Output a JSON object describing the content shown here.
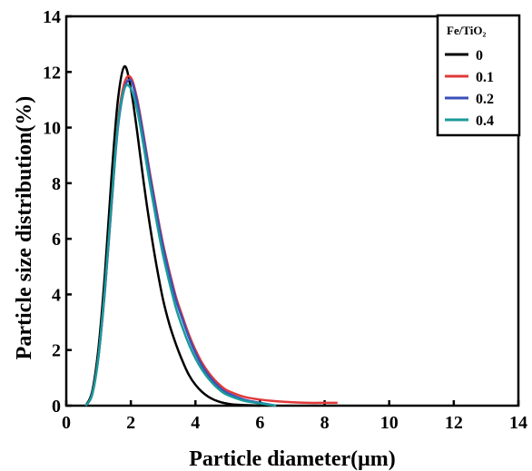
{
  "chart_data": {
    "type": "line",
    "title": "",
    "xlabel": "Particle diameter(μm)",
    "ylabel": "Particle size distribution(%)",
    "xlim": [
      0,
      14
    ],
    "ylim": [
      0,
      14
    ],
    "xticks": [
      "0",
      "2",
      "4",
      "6",
      "8",
      "10",
      "12",
      "14"
    ],
    "yticks": [
      "0",
      "2",
      "4",
      "6",
      "8",
      "10",
      "12",
      "14"
    ],
    "grid": false,
    "legend": {
      "title": "Fe/TiO₂",
      "placement": "top-right"
    },
    "series": [
      {
        "name": "0",
        "color": "#000000",
        "x": [
          0.6,
          0.8,
          1.0,
          1.2,
          1.4,
          1.6,
          1.8,
          2.0,
          2.2,
          2.4,
          2.6,
          2.8,
          3.0,
          3.2,
          3.4,
          3.6,
          3.8,
          4.0,
          4.2,
          4.4,
          4.6,
          4.8,
          5.0,
          5.2,
          5.5,
          6.0
        ],
        "y": [
          0,
          0.5,
          2.1,
          4.8,
          8.2,
          11.0,
          12.2,
          11.4,
          9.8,
          8.0,
          6.4,
          5.0,
          3.8,
          2.9,
          2.2,
          1.6,
          1.1,
          0.75,
          0.5,
          0.32,
          0.2,
          0.12,
          0.07,
          0.04,
          0.02,
          0
        ]
      },
      {
        "name": "0.1",
        "color": "#e03a3a",
        "x": [
          0.6,
          0.8,
          1.0,
          1.2,
          1.4,
          1.6,
          1.8,
          2.0,
          2.2,
          2.4,
          2.6,
          2.8,
          3.0,
          3.2,
          3.4,
          3.6,
          3.8,
          4.0,
          4.2,
          4.4,
          4.6,
          4.8,
          5.0,
          5.5,
          6.0,
          6.5,
          7.0,
          7.5,
          8.0,
          8.4
        ],
        "y": [
          0,
          0.4,
          1.8,
          4.2,
          7.2,
          10.2,
          11.6,
          11.8,
          11.0,
          9.7,
          8.3,
          7.0,
          5.8,
          4.8,
          3.9,
          3.2,
          2.55,
          2.0,
          1.55,
          1.2,
          0.92,
          0.7,
          0.54,
          0.32,
          0.22,
          0.16,
          0.12,
          0.1,
          0.1,
          0.1
        ]
      },
      {
        "name": "0.2",
        "color": "#3a4fb8",
        "x": [
          0.6,
          0.8,
          1.0,
          1.2,
          1.4,
          1.6,
          1.8,
          2.0,
          2.2,
          2.4,
          2.6,
          2.8,
          3.0,
          3.2,
          3.4,
          3.6,
          3.8,
          4.0,
          4.2,
          4.4,
          4.6,
          4.8,
          5.0,
          5.5,
          6.0,
          6.5
        ],
        "y": [
          0,
          0.4,
          1.8,
          4.2,
          7.2,
          10.0,
          11.4,
          11.7,
          10.9,
          9.6,
          8.2,
          6.9,
          5.7,
          4.7,
          3.8,
          3.1,
          2.45,
          1.9,
          1.45,
          1.1,
          0.82,
          0.6,
          0.45,
          0.22,
          0.1,
          0
        ]
      },
      {
        "name": "0.4",
        "color": "#1a9a9a",
        "x": [
          0.6,
          0.8,
          1.0,
          1.2,
          1.4,
          1.6,
          1.8,
          2.0,
          2.2,
          2.4,
          2.6,
          2.8,
          3.0,
          3.2,
          3.4,
          3.6,
          3.8,
          4.0,
          4.2,
          4.4,
          4.6,
          4.8,
          5.0,
          5.5,
          6.0,
          6.5
        ],
        "y": [
          0,
          0.4,
          1.8,
          4.3,
          7.3,
          10.1,
          11.4,
          11.4,
          10.6,
          9.3,
          7.9,
          6.6,
          5.4,
          4.4,
          3.5,
          2.8,
          2.2,
          1.7,
          1.3,
          0.98,
          0.72,
          0.52,
          0.38,
          0.18,
          0.08,
          0
        ]
      }
    ]
  }
}
